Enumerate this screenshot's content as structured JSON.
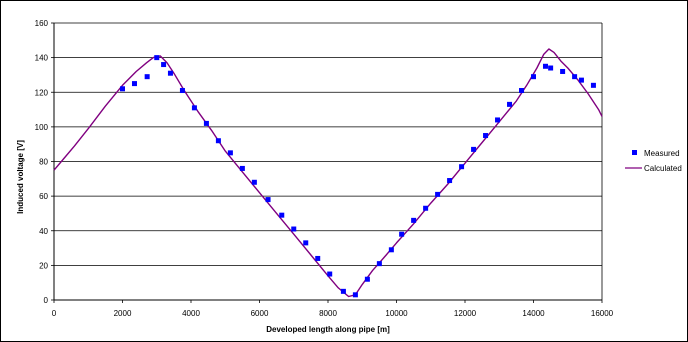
{
  "chart_data": {
    "type": "scatter",
    "title": "",
    "xlabel": "Developed length along pipe [m]",
    "ylabel": "Induced voltage [V]",
    "xlim": [
      0,
      16000
    ],
    "ylim": [
      0,
      160
    ],
    "xticks": [
      0,
      2000,
      4000,
      6000,
      8000,
      10000,
      12000,
      14000,
      16000
    ],
    "yticks": [
      0,
      20,
      40,
      60,
      80,
      100,
      120,
      140,
      160
    ],
    "grid": "horizontal",
    "legend_position": "right",
    "series": [
      {
        "name": "Measured",
        "kind": "scatter",
        "marker": "square",
        "color": "#0000ff",
        "points": [
          [
            2000,
            122
          ],
          [
            2350,
            125
          ],
          [
            2720,
            129
          ],
          [
            3000,
            140
          ],
          [
            3200,
            136
          ],
          [
            3400,
            131
          ],
          [
            3750,
            121
          ],
          [
            4100,
            111
          ],
          [
            4450,
            102
          ],
          [
            4800,
            92
          ],
          [
            5150,
            85
          ],
          [
            5500,
            76
          ],
          [
            5850,
            68
          ],
          [
            6250,
            58
          ],
          [
            6650,
            49
          ],
          [
            7000,
            41
          ],
          [
            7350,
            33
          ],
          [
            7700,
            24
          ],
          [
            8050,
            15
          ],
          [
            8450,
            5
          ],
          [
            8800,
            3
          ],
          [
            9150,
            12
          ],
          [
            9500,
            21
          ],
          [
            9850,
            29
          ],
          [
            10150,
            38
          ],
          [
            10500,
            46
          ],
          [
            10850,
            53
          ],
          [
            11200,
            61
          ],
          [
            11550,
            69
          ],
          [
            11900,
            77
          ],
          [
            12250,
            87
          ],
          [
            12600,
            95
          ],
          [
            12950,
            104
          ],
          [
            13300,
            113
          ],
          [
            13650,
            121
          ],
          [
            14000,
            129
          ],
          [
            14350,
            135
          ],
          [
            14500,
            134
          ],
          [
            14850,
            132
          ],
          [
            15200,
            129
          ],
          [
            15400,
            127
          ],
          [
            15750,
            124
          ]
        ]
      },
      {
        "name": "Calculated",
        "kind": "line",
        "color": "#800080",
        "points": [
          [
            0,
            75
          ],
          [
            300,
            82
          ],
          [
            600,
            89
          ],
          [
            1000,
            99
          ],
          [
            1500,
            112
          ],
          [
            2000,
            124
          ],
          [
            2400,
            132
          ],
          [
            2700,
            137
          ],
          [
            2900,
            140
          ],
          [
            3100,
            141
          ],
          [
            3300,
            137
          ],
          [
            3500,
            131
          ],
          [
            3800,
            121
          ],
          [
            4200,
            109
          ],
          [
            4600,
            98
          ],
          [
            5000,
            86
          ],
          [
            5500,
            74
          ],
          [
            6000,
            62
          ],
          [
            6500,
            50
          ],
          [
            7000,
            38
          ],
          [
            7500,
            26
          ],
          [
            8000,
            14
          ],
          [
            8300,
            7
          ],
          [
            8600,
            2
          ],
          [
            8800,
            3
          ],
          [
            9000,
            9
          ],
          [
            9300,
            17
          ],
          [
            9700,
            26
          ],
          [
            10000,
            33
          ],
          [
            10500,
            44
          ],
          [
            11000,
            56
          ],
          [
            11500,
            67
          ],
          [
            12000,
            79
          ],
          [
            12500,
            91
          ],
          [
            13000,
            103
          ],
          [
            13500,
            115
          ],
          [
            13800,
            124
          ],
          [
            14100,
            134
          ],
          [
            14300,
            142
          ],
          [
            14450,
            145
          ],
          [
            14600,
            143
          ],
          [
            14800,
            138
          ],
          [
            15000,
            134
          ],
          [
            15300,
            127
          ],
          [
            15600,
            119
          ],
          [
            15900,
            110
          ],
          [
            16000,
            106
          ]
        ]
      }
    ]
  }
}
